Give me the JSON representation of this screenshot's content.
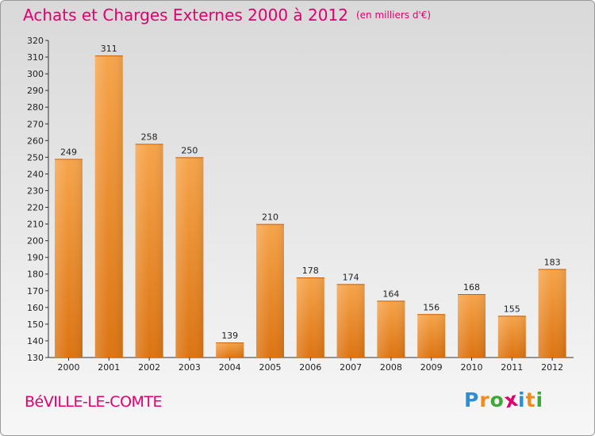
{
  "header": {
    "title": "Achats et Charges Externes 2000 à 2012",
    "unit": "(en milliers d'€)"
  },
  "footer": {
    "commune": "BéVILLE-LE-COMTE"
  },
  "logo": {
    "letters": [
      {
        "char": "P",
        "color": "#2a8fd4"
      },
      {
        "char": "r",
        "color": "#f08c1e"
      },
      {
        "char": "o",
        "color": "#3aaa35"
      },
      {
        "char": "x",
        "color": "#e0006e"
      },
      {
        "char": "i",
        "color": "#2a8fd4"
      },
      {
        "char": "t",
        "color": "#f08c1e"
      },
      {
        "char": "i",
        "color": "#3aaa35"
      }
    ]
  },
  "chart_data": {
    "type": "bar",
    "title": "Achats et Charges Externes 2000 à 2012",
    "subtitle": "(en milliers d'€)",
    "categories": [
      "2000",
      "2001",
      "2002",
      "2003",
      "2004",
      "2005",
      "2006",
      "2007",
      "2008",
      "2009",
      "2010",
      "2011",
      "2012"
    ],
    "values": [
      249,
      311,
      258,
      250,
      139,
      210,
      178,
      174,
      164,
      156,
      168,
      155,
      183
    ],
    "ylim": [
      130,
      320
    ],
    "yticks": [
      130,
      140,
      150,
      160,
      170,
      180,
      190,
      200,
      210,
      220,
      230,
      240,
      250,
      260,
      270,
      280,
      290,
      300,
      310,
      320
    ],
    "grid": false,
    "bar_color": "#f0922e"
  }
}
